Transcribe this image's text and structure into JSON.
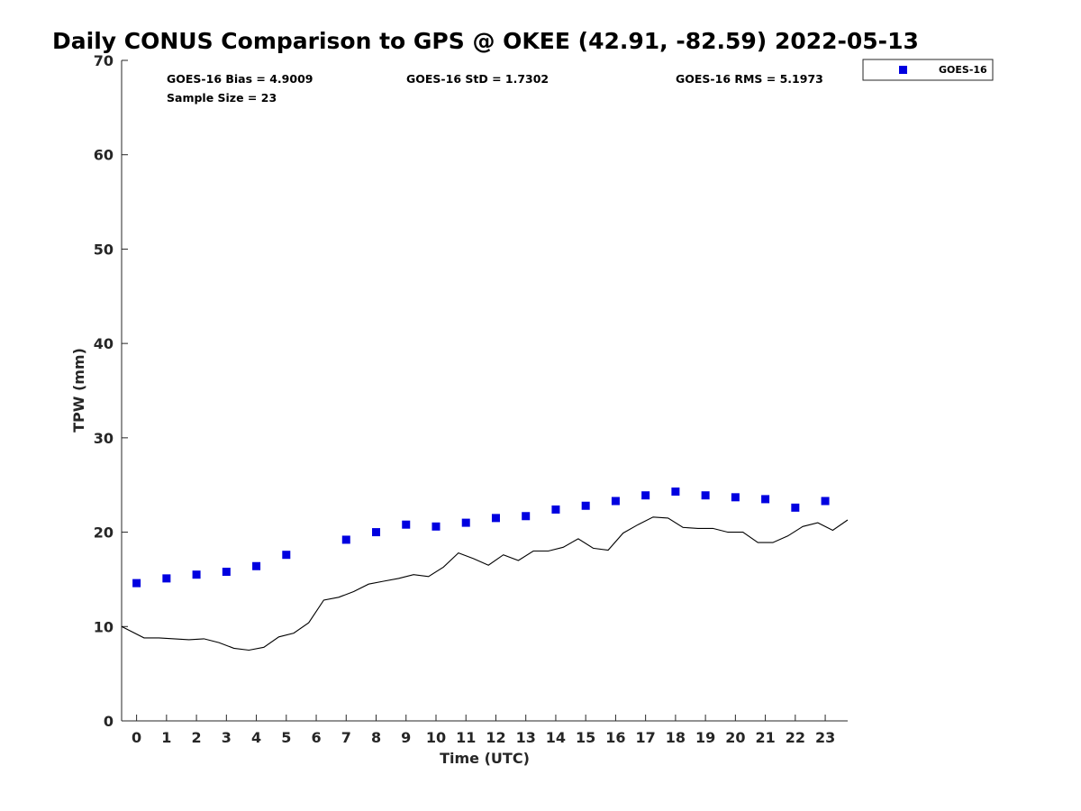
{
  "chart_data": {
    "type": "scatter",
    "title": "Daily CONUS Comparison to GPS @ OKEE (42.91, -82.59) 2022-05-13",
    "xlabel": "Time (UTC)",
    "ylabel": "TPW (mm)",
    "xlim": [
      -0.5,
      23.75
    ],
    "ylim": [
      0,
      70
    ],
    "xticks": [
      0,
      1,
      2,
      3,
      4,
      5,
      6,
      7,
      8,
      9,
      10,
      11,
      12,
      13,
      14,
      15,
      16,
      17,
      18,
      19,
      20,
      21,
      22,
      23
    ],
    "yticks": [
      0,
      10,
      20,
      30,
      40,
      50,
      60,
      70
    ],
    "grid": false,
    "legend_position": "top-right (outside plot)",
    "stats": {
      "bias": "GOES-16 Bias = 4.9009",
      "std": "GOES-16 StD = 1.7302",
      "rms": "GOES-16 RMS = 5.1973",
      "sample": "Sample Size = 23"
    },
    "series": [
      {
        "name": "GOES-16",
        "kind": "markers",
        "marker": "square",
        "color": "#0000e0",
        "x": [
          0,
          1,
          2,
          3,
          4,
          5,
          7,
          8,
          9,
          10,
          11,
          12,
          13,
          14,
          15,
          16,
          17,
          18,
          19,
          20,
          21,
          22,
          23
        ],
        "y": [
          14.6,
          15.1,
          15.5,
          15.8,
          16.4,
          17.6,
          19.2,
          20.0,
          20.8,
          20.6,
          21.0,
          21.5,
          21.7,
          22.4,
          22.8,
          23.3,
          23.9,
          24.3,
          23.9,
          23.7,
          23.5,
          22.6,
          23.3
        ]
      },
      {
        "kind": "line",
        "color": "#000000",
        "x": [
          -0.5,
          0.25,
          0.75,
          1.25,
          1.75,
          2.25,
          2.75,
          3.25,
          3.75,
          4.25,
          4.75,
          5.25,
          5.75,
          6.25,
          6.75,
          7.25,
          7.75,
          8.25,
          8.75,
          9.25,
          9.75,
          10.25,
          10.75,
          11.25,
          11.75,
          12.25,
          12.75,
          13.25,
          13.75,
          14.25,
          14.75,
          15.25,
          15.75,
          16.25,
          16.75,
          17.25,
          17.75,
          18.25,
          18.75,
          19.25,
          19.75,
          20.25,
          20.75,
          21.25,
          21.75,
          22.25,
          22.75,
          23.25,
          23.75
        ],
        "y": [
          10.0,
          8.8,
          8.8,
          8.7,
          8.6,
          8.7,
          8.3,
          7.7,
          7.5,
          7.8,
          8.9,
          9.3,
          10.4,
          12.8,
          13.1,
          13.7,
          14.5,
          14.8,
          15.1,
          15.5,
          15.3,
          16.3,
          17.8,
          17.2,
          16.5,
          17.6,
          17.0,
          18.0,
          18.0,
          18.4,
          19.3,
          18.3,
          18.1,
          19.9,
          20.8,
          21.6,
          21.5,
          20.5,
          20.4,
          20.4,
          20.0,
          20.0,
          18.9,
          18.9,
          19.6,
          20.6,
          21.0,
          20.2,
          21.3
        ]
      }
    ]
  }
}
